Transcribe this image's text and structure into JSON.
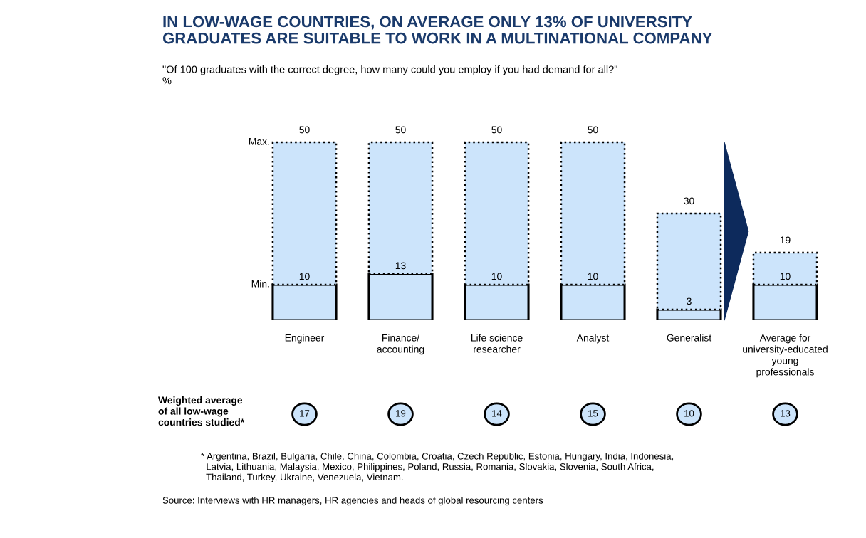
{
  "chart_data": {
    "type": "bar",
    "title": "IN LOW-WAGE COUNTRIES, ON AVERAGE ONLY 13% OF UNIVERSITY\nGRADUATES ARE SUITABLE TO WORK IN A MULTINATIONAL COMPANY",
    "subtitle": "\"Of 100 graduates with the correct degree, how many could you employ if you had demand for all?\"\n%",
    "categories": [
      "Engineer",
      "Finance/\naccounting",
      "Life science\nresearcher",
      "Analyst",
      "Generalist",
      "Average for\nuniversity-educated\nyoung\nprofessionals"
    ],
    "stacked": true,
    "series": [
      {
        "name": "Min.",
        "color": "#cce4fb",
        "line_style": "solid",
        "values": [
          10,
          13,
          10,
          10,
          3,
          10
        ],
        "value_labels": [
          "10",
          "13",
          "10",
          "10",
          "3",
          "10"
        ]
      },
      {
        "name": "Max.",
        "color": "#cce4fb",
        "line_style": "dotted",
        "values": [
          40,
          37,
          40,
          40,
          27,
          9
        ]
      }
    ],
    "totals": [
      "50",
      "50",
      "50",
      "50",
      "30",
      "19"
    ],
    "legend": false,
    "grid": false,
    "annotations": [
      "Weighted average\nof all low-wage\ncountries studied*",
      "17",
      "19",
      "14",
      "15",
      "10",
      "13",
      "* Argentina, Brazil, Bulgaria, Chile, China, Colombia, Croatia, Czech Republic, Estonia, Hungary, India, Indonesia,\n  Latvia, Lithuania, Malaysia, Mexico, Philippines, Poland, Russia, Romania, Slovakia, Slovenia, South Africa,\n  Thailand, Turkey, Ukraine, Venezuela, Vietnam.",
      "Source: Interviews with HR managers, HR agencies and heads of global resourcing centers"
    ]
  }
}
